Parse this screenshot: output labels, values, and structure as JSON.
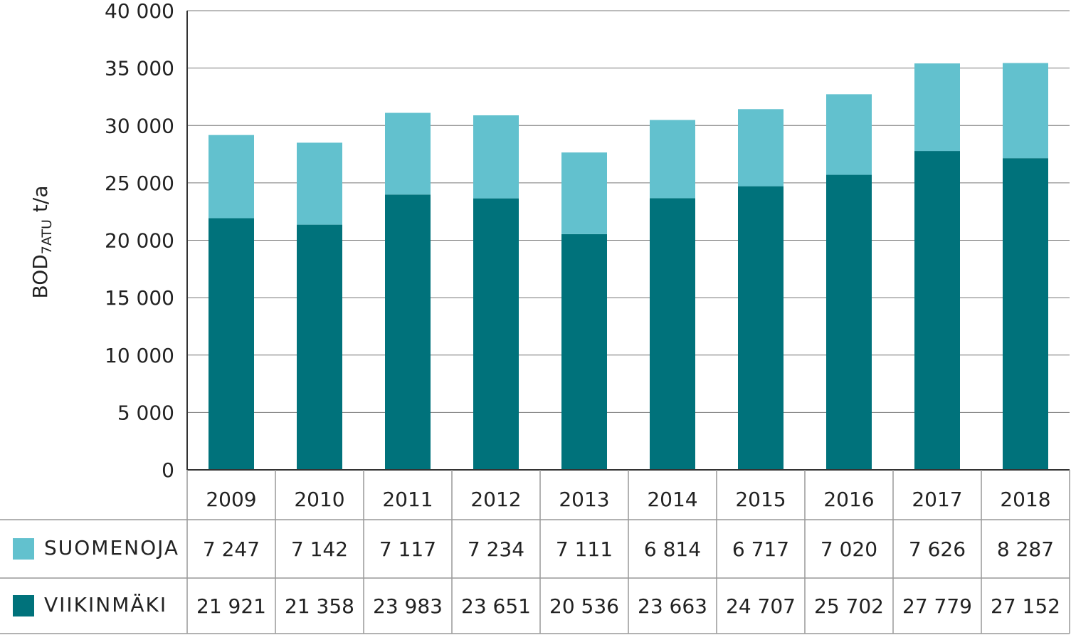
{
  "chart_data": {
    "type": "bar",
    "stacked": true,
    "ylabel": {
      "main": "BOD",
      "sub": "7ATU",
      "unit": "t/a"
    },
    "categories": [
      "2009",
      "2010",
      "2011",
      "2012",
      "2013",
      "2014",
      "2015",
      "2016",
      "2017",
      "2018"
    ],
    "series": [
      {
        "name": "VIIKINMÄKI",
        "color": "#00727b",
        "values": [
          21921,
          21358,
          23983,
          23651,
          20536,
          23663,
          24707,
          25702,
          27779,
          27152
        ],
        "value_labels": [
          "21 921",
          "21 358",
          "23 983",
          "23 651",
          "20 536",
          "23 663",
          "24 707",
          "25 702",
          "27 779",
          "27 152"
        ]
      },
      {
        "name": "SUOMENOJA",
        "color": "#62c1ce",
        "values": [
          7247,
          7142,
          7117,
          7234,
          7111,
          6814,
          6717,
          7020,
          7626,
          8287
        ],
        "value_labels": [
          "7 247",
          "7 142",
          "7 117",
          "7 234",
          "7 111",
          "6 814",
          "6 717",
          "7 020",
          "7 626",
          "8 287"
        ]
      }
    ],
    "ylim": [
      0,
      40000
    ],
    "yticks": [
      0,
      {
        "value": 5000,
        "label": "5 000"
      },
      {
        "value": 10000,
        "label": "10 000"
      },
      {
        "value": 15000,
        "label": "15 000"
      },
      {
        "value": 20000,
        "label": "20 000"
      },
      {
        "value": 25000,
        "label": "25 000"
      },
      {
        "value": 30000,
        "label": "30 000"
      },
      {
        "value": 35000,
        "label": "35 000"
      },
      {
        "value": 40000,
        "label": "40 000"
      }
    ],
    "grid": true
  }
}
